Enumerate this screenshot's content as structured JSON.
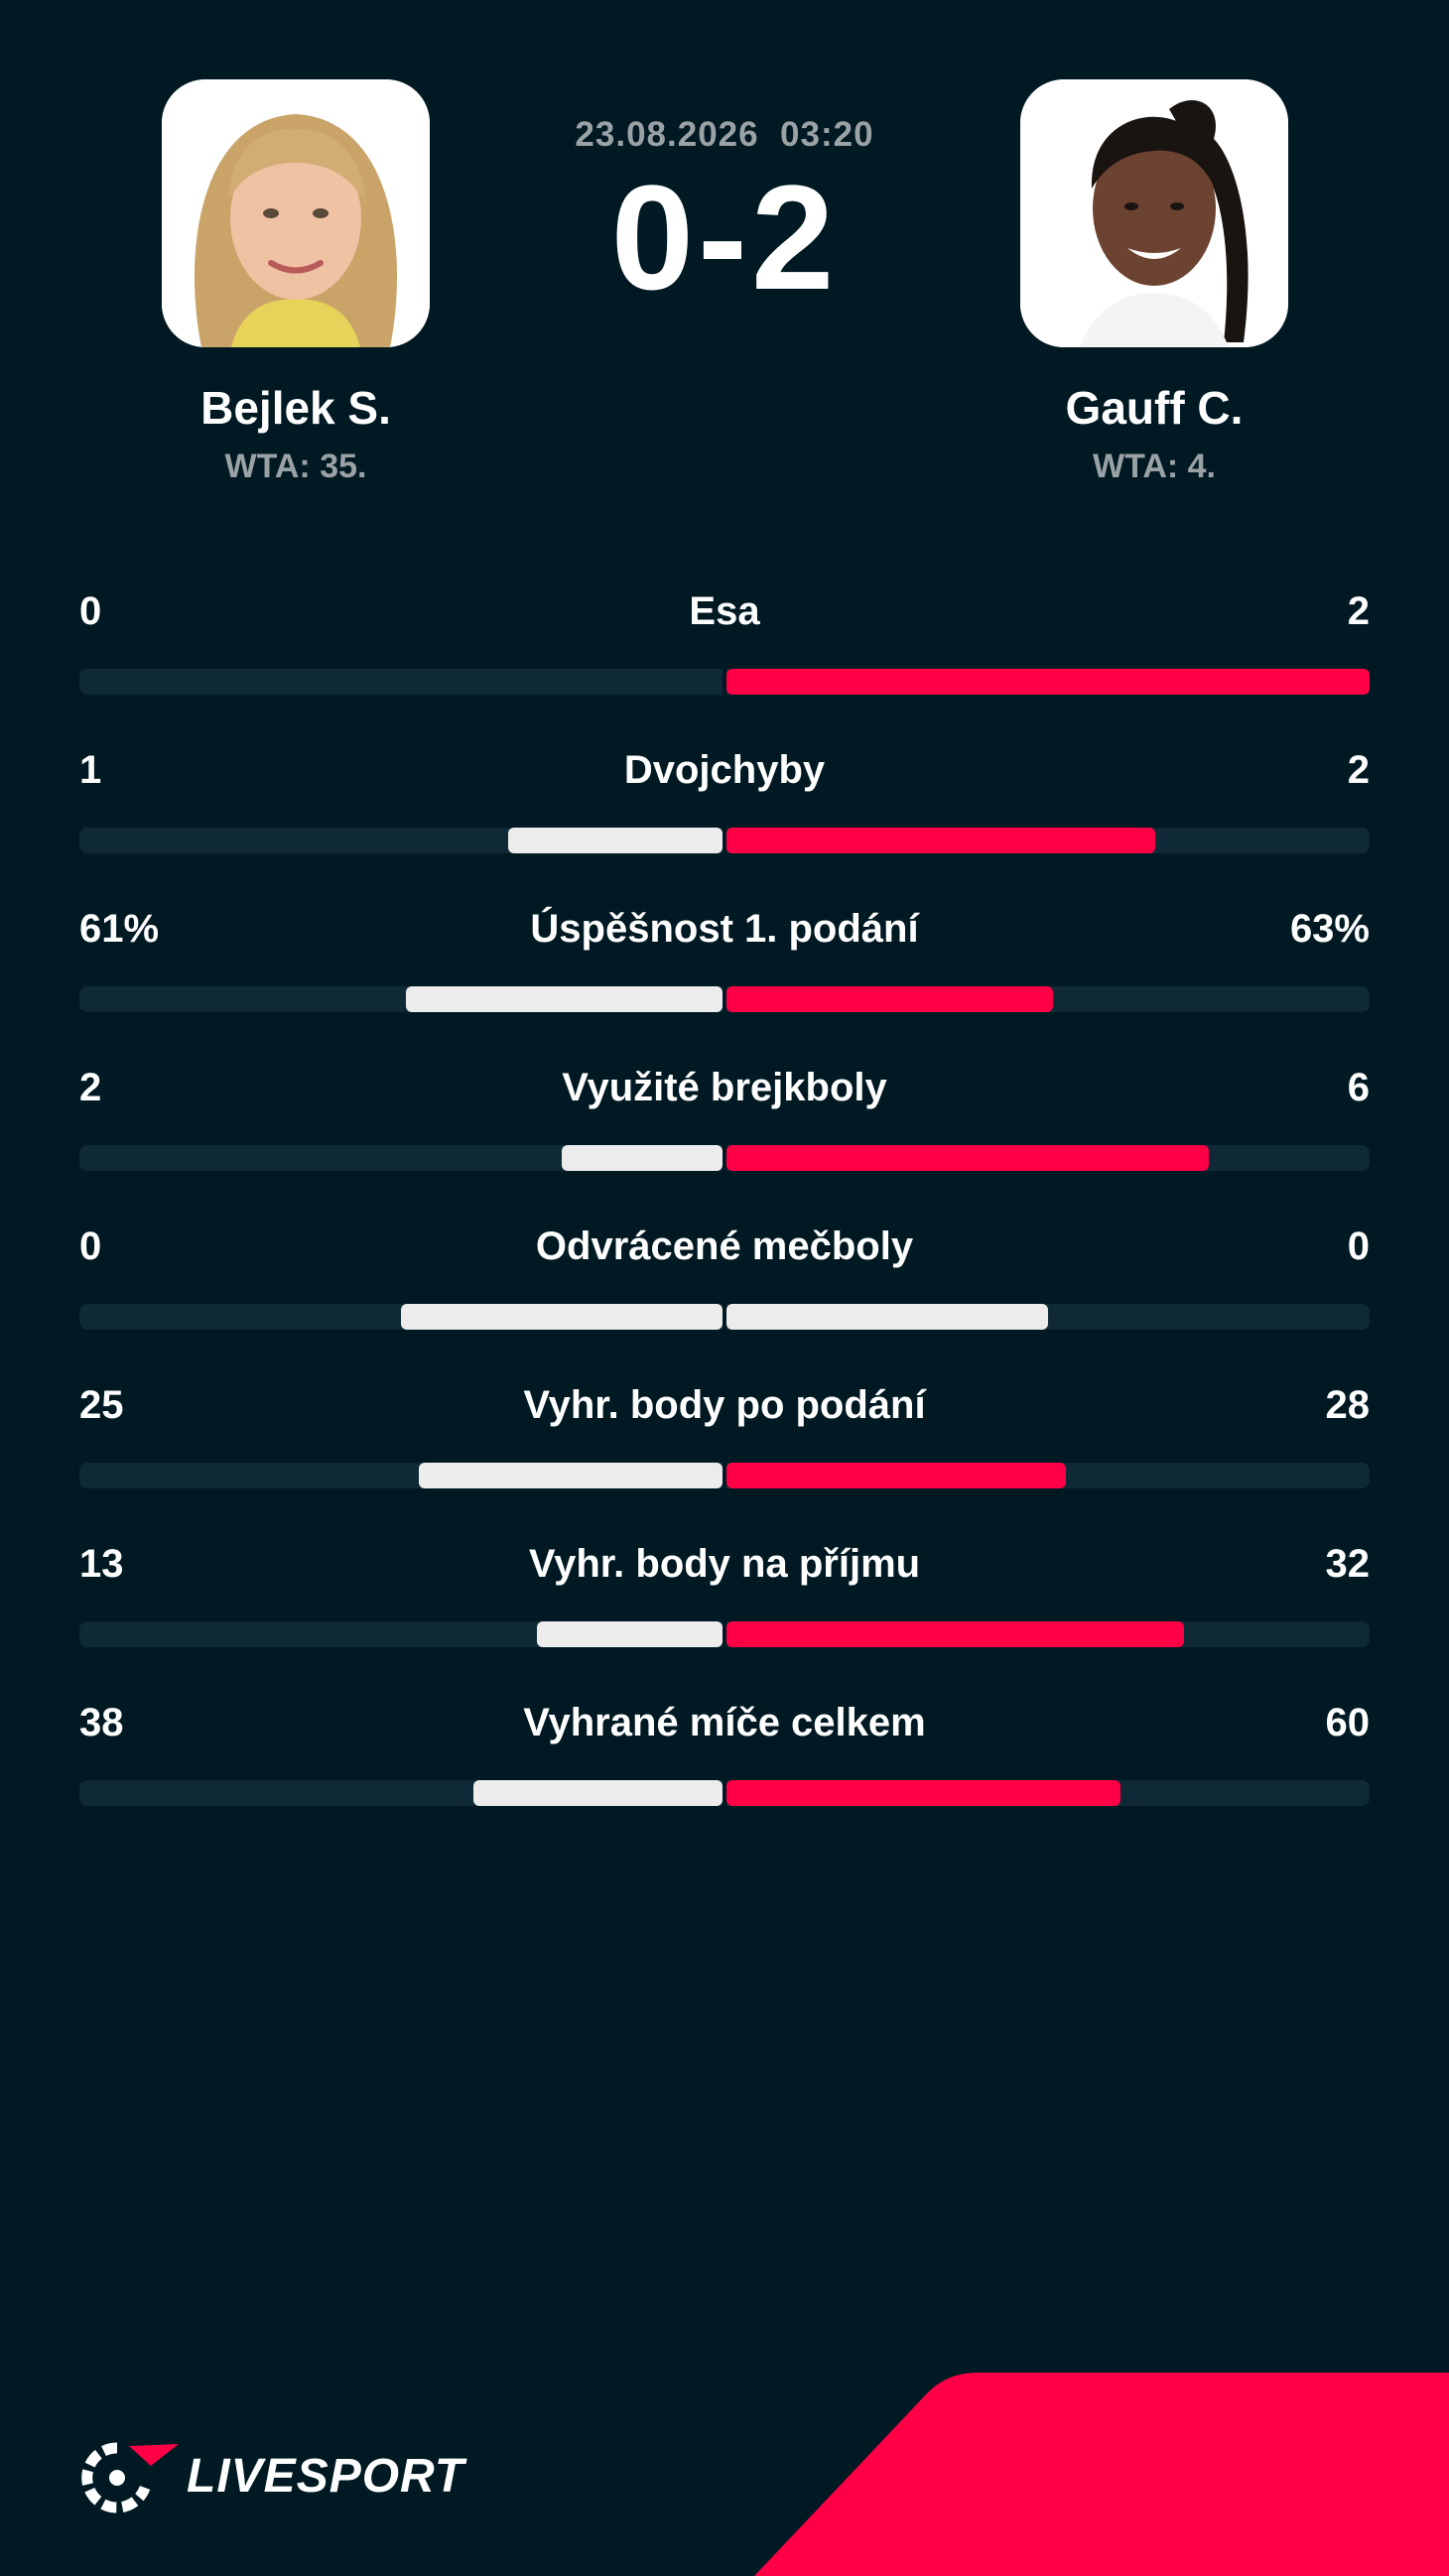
{
  "match": {
    "date": "23.08.2026",
    "time": "03:20",
    "score": "0-2"
  },
  "home": {
    "name": "Bejlek S.",
    "rank": "WTA: 35."
  },
  "away": {
    "name": "Gauff C.",
    "rank": "WTA: 4."
  },
  "colors": {
    "background": "#001923",
    "accent": "#ff0046",
    "home_bar": "#ececec",
    "away_bar": "#ff0046",
    "neutral_bar": "#ececec",
    "track": "#0f2a36",
    "muted_text": "#9aa2a6"
  },
  "stats": [
    {
      "label": "Esa",
      "home": "0",
      "away": "2",
      "home_share": 0.0,
      "away_share": 1.0,
      "tie": false
    },
    {
      "label": "Dvojchyby",
      "home": "1",
      "away": "2",
      "home_share": 0.333,
      "away_share": 0.667,
      "tie": false
    },
    {
      "label": "Úspěšnost 1. podání",
      "home": "61%",
      "away": "63%",
      "home_share": 0.492,
      "away_share": 0.508,
      "tie": false
    },
    {
      "label": "Využité brejkboly",
      "home": "2",
      "away": "6",
      "home_share": 0.25,
      "away_share": 0.75,
      "tie": false
    },
    {
      "label": "Odvrácené mečboly",
      "home": "0",
      "away": "0",
      "home_share": 0.5,
      "away_share": 0.5,
      "tie": true
    },
    {
      "label": "Vyhr. body po podání",
      "home": "25",
      "away": "28",
      "home_share": 0.472,
      "away_share": 0.528,
      "tie": false
    },
    {
      "label": "Vyhr. body na příjmu",
      "home": "13",
      "away": "32",
      "home_share": 0.289,
      "away_share": 0.711,
      "tie": false
    },
    {
      "label": "Vyhrané míče celkem",
      "home": "38",
      "away": "60",
      "home_share": 0.388,
      "away_share": 0.612,
      "tie": false
    }
  ],
  "brand": {
    "name": "LIVESPORT",
    "logo_icon": "livesport-logo-icon"
  }
}
